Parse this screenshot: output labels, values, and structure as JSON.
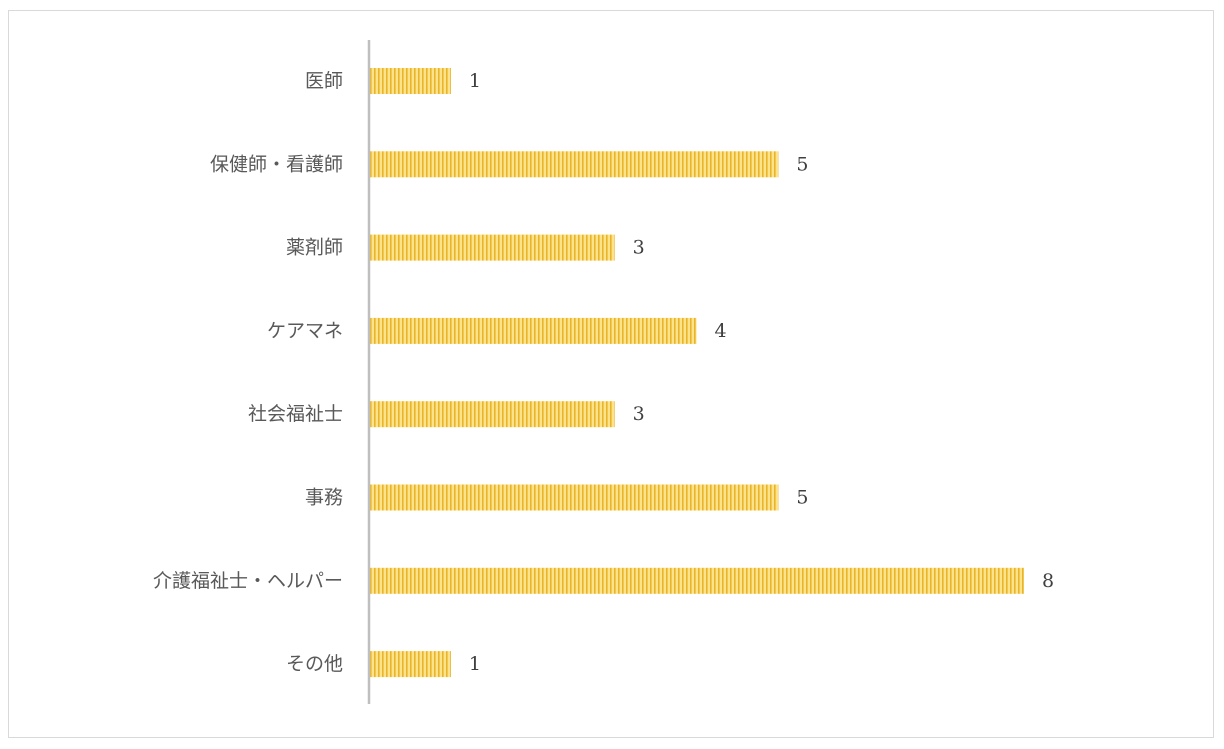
{
  "chart_data": {
    "type": "bar",
    "orientation": "horizontal",
    "categories": [
      "医師",
      "保健師・看護師",
      "薬剤師",
      "ケアマネ",
      "社会福祉士",
      "事務",
      "介護福祉士・ヘルパー",
      "その他"
    ],
    "values": [
      1,
      5,
      3,
      4,
      3,
      5,
      8,
      1
    ],
    "title": "",
    "xlabel": "",
    "ylabel": "",
    "xlim": [
      0,
      8
    ],
    "grid": false,
    "legend": "none",
    "data_labels": true,
    "colors": {
      "bar_fill": "#ffe38a",
      "bar_stripe": "#e8b52a",
      "axis_line": "#bfbfbf",
      "border": "#d9d9d9"
    }
  }
}
